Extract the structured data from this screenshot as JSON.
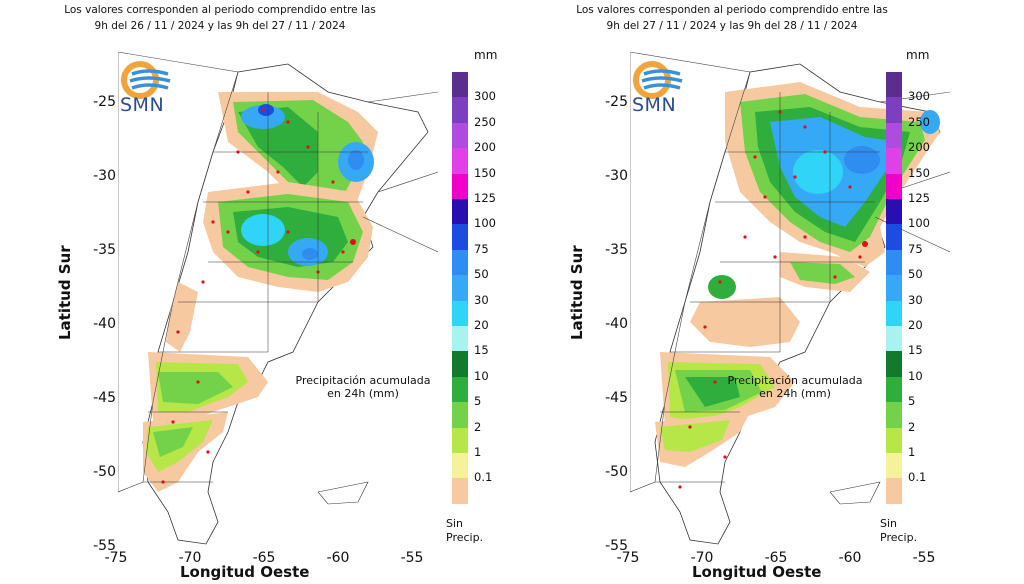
{
  "panels": [
    {
      "title_line1": "Los valores corresponden al periodo comprendido entre las",
      "title_line2": "9h del 26 / 11 / 2024  y las 9h del 27 / 11 / 2024"
    },
    {
      "title_line1": "Los valores corresponden al periodo comprendido entre las",
      "title_line2": "9h del 27 / 11 / 2024  y las 9h del 28 / 11 / 2024"
    }
  ],
  "common": {
    "logo_text": "SMN",
    "ylabel": "Latitud Sur",
    "xlabel": "Longitud Oeste",
    "y_ticks": [
      "-25",
      "-30",
      "-35",
      "-40",
      "-45",
      "-50",
      "-55"
    ],
    "x_ticks": [
      "-75",
      "-70",
      "-65",
      "-60",
      "-55"
    ],
    "annotation_line1": "Precipitación acumulada",
    "annotation_line2": "en 24h (mm)",
    "legend_unit": "mm",
    "no_data_line1": "Sin",
    "no_data_line2": "Precip."
  },
  "legend": [
    {
      "label": "300",
      "color": "#5b2d8e"
    },
    {
      "label": "250",
      "color": "#7b3fbf"
    },
    {
      "label": "200",
      "color": "#b04be0"
    },
    {
      "label": "150",
      "color": "#e040e8"
    },
    {
      "label": "125",
      "color": "#f000c8"
    },
    {
      "label": "100",
      "color": "#2a0fb0"
    },
    {
      "label": "75",
      "color": "#1d4de0"
    },
    {
      "label": "50",
      "color": "#2f8cf0"
    },
    {
      "label": "30",
      "color": "#36a9f6"
    },
    {
      "label": "20",
      "color": "#2fd4f6"
    },
    {
      "label": "15",
      "color": "#a8f2f0"
    },
    {
      "label": "10",
      "color": "#127a2c"
    },
    {
      "label": "5",
      "color": "#2fae3e"
    },
    {
      "label": "2",
      "color": "#74d24a"
    },
    {
      "label": "1",
      "color": "#b7e648"
    },
    {
      "label": "0.1",
      "color": "#f6f29a"
    },
    {
      "label": "",
      "color": "#f7c9a0"
    }
  ]
}
